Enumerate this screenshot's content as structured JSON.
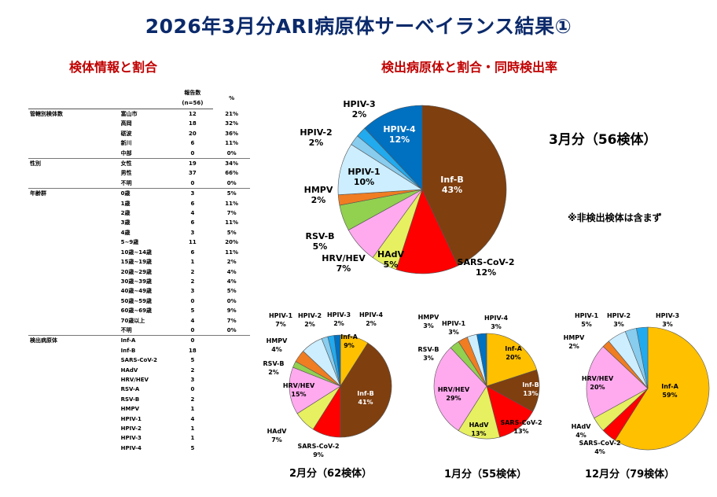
{
  "title": "2026年3月分ARI病原体サーベイランス結果①",
  "left_section_title": "検体情報と割合",
  "right_section_title": "検出病原体と割合・同時検出率",
  "table": {
    "col_count": "報告数",
    "col_n": "(n=56)",
    "col_pct": "%",
    "groups": [
      {
        "label": "管轄別検体数",
        "rows": [
          {
            "label": "富山市",
            "count": "12",
            "pct": "21%"
          },
          {
            "label": "高岡",
            "count": "18",
            "pct": "32%"
          },
          {
            "label": "砺波",
            "count": "20",
            "pct": "36%"
          },
          {
            "label": "新川",
            "count": "6",
            "pct": "11%"
          },
          {
            "label": "中部",
            "count": "0",
            "pct": "0%"
          }
        ]
      },
      {
        "label": "性別",
        "rows": [
          {
            "label": "女性",
            "count": "19",
            "pct": "34%"
          },
          {
            "label": "男性",
            "count": "37",
            "pct": "66%"
          },
          {
            "label": "不明",
            "count": "0",
            "pct": "0%"
          }
        ]
      },
      {
        "label": "年齢群",
        "rows": [
          {
            "label": "0歳",
            "count": "3",
            "pct": "5%"
          },
          {
            "label": "1歳",
            "count": "6",
            "pct": "11%"
          },
          {
            "label": "2歳",
            "count": "4",
            "pct": "7%"
          },
          {
            "label": "3歳",
            "count": "6",
            "pct": "11%"
          },
          {
            "label": "4歳",
            "count": "3",
            "pct": "5%"
          },
          {
            "label": "5~9歳",
            "count": "11",
            "pct": "20%"
          },
          {
            "label": "10歳~14歳",
            "count": "6",
            "pct": "11%"
          },
          {
            "label": "15歳~19歳",
            "count": "1",
            "pct": "2%"
          },
          {
            "label": "20歳~29歳",
            "count": "2",
            "pct": "4%"
          },
          {
            "label": "30歳~39歳",
            "count": "2",
            "pct": "4%"
          },
          {
            "label": "40歳~49歳",
            "count": "3",
            "pct": "5%"
          },
          {
            "label": "50歳~59歳",
            "count": "0",
            "pct": "0%"
          },
          {
            "label": "60歳~69歳",
            "count": "5",
            "pct": "9%"
          },
          {
            "label": "70歳以上",
            "count": "4",
            "pct": "7%"
          },
          {
            "label": "不明",
            "count": "0",
            "pct": "0%"
          }
        ]
      },
      {
        "label": "検出病原体",
        "rows": [
          {
            "label": "Inf-A",
            "count": "0",
            "pct": ""
          },
          {
            "label": "Inf-B",
            "count": "18",
            "pct": ""
          },
          {
            "label": "SARS-CoV-2",
            "count": "5",
            "pct": ""
          },
          {
            "label": "HAdV",
            "count": "2",
            "pct": ""
          },
          {
            "label": "HRV/HEV",
            "count": "3",
            "pct": ""
          },
          {
            "label": "RSV-A",
            "count": "0",
            "pct": ""
          },
          {
            "label": "RSV-B",
            "count": "2",
            "pct": ""
          },
          {
            "label": "HMPV",
            "count": "1",
            "pct": ""
          },
          {
            "label": "HPIV-1",
            "count": "4",
            "pct": ""
          },
          {
            "label": "HPIV-2",
            "count": "1",
            "pct": ""
          },
          {
            "label": "HPIV-3",
            "count": "1",
            "pct": ""
          },
          {
            "label": "HPIV-4",
            "count": "5",
            "pct": ""
          }
        ]
      }
    ]
  },
  "colors": {
    "Inf-A": "#ffc000",
    "Inf-B": "#7f3f0f",
    "SARS-CoV-2": "#ff0000",
    "HAdV": "#e7f060",
    "HRV/HEV": "#ffaaee",
    "RSV-B": "#92d050",
    "HMPV": "#f07d22",
    "HPIV-1": "#cceeff",
    "HPIV-2": "#88ccee",
    "HPIV-3": "#22aaee",
    "HPIV-4": "#0070c0"
  },
  "labels": {
    "march": "3月分（56検体）",
    "note": "※非検出検体は含まず",
    "feb": "2月分（62検体）",
    "jan": "1月分（55検体）",
    "dec": "12月分（79検体）"
  },
  "chart_data": [
    {
      "type": "pie",
      "title": "3月分（56検体）",
      "slices": [
        {
          "name": "Inf-B",
          "value": 43,
          "label": "43%"
        },
        {
          "name": "SARS-CoV-2",
          "value": 12,
          "label": "12%"
        },
        {
          "name": "HAdV",
          "value": 5,
          "label": "5%"
        },
        {
          "name": "HRV/HEV",
          "value": 7,
          "label": "7%"
        },
        {
          "name": "RSV-B",
          "value": 5,
          "label": "5%"
        },
        {
          "name": "HMPV",
          "value": 2,
          "label": "2%"
        },
        {
          "name": "HPIV-1",
          "value": 10,
          "label": "10%"
        },
        {
          "name": "HPIV-2",
          "value": 2,
          "label": "2%"
        },
        {
          "name": "HPIV-3",
          "value": 2,
          "label": "2%"
        },
        {
          "name": "HPIV-4",
          "value": 12,
          "label": "12%"
        }
      ]
    },
    {
      "type": "pie",
      "title": "2月分（62検体）",
      "slices": [
        {
          "name": "Inf-A",
          "value": 9,
          "label": "9%"
        },
        {
          "name": "Inf-B",
          "value": 41,
          "label": "41%"
        },
        {
          "name": "SARS-CoV-2",
          "value": 9,
          "label": "9%"
        },
        {
          "name": "HAdV",
          "value": 7,
          "label": "7%"
        },
        {
          "name": "HRV/HEV",
          "value": 15,
          "label": "15%"
        },
        {
          "name": "RSV-B",
          "value": 2,
          "label": "2%"
        },
        {
          "name": "HMPV",
          "value": 4,
          "label": "4%"
        },
        {
          "name": "HPIV-1",
          "value": 7,
          "label": "7%"
        },
        {
          "name": "HPIV-2",
          "value": 2,
          "label": "2%"
        },
        {
          "name": "HPIV-3",
          "value": 2,
          "label": "2%"
        },
        {
          "name": "HPIV-4",
          "value": 2,
          "label": "2%"
        }
      ]
    },
    {
      "type": "pie",
      "title": "1月分（55検体）",
      "slices": [
        {
          "name": "Inf-A",
          "value": 20,
          "label": "20%"
        },
        {
          "name": "Inf-B",
          "value": 13,
          "label": "13%"
        },
        {
          "name": "SARS-CoV-2",
          "value": 13,
          "label": "13%"
        },
        {
          "name": "HAdV",
          "value": 13,
          "label": "13%"
        },
        {
          "name": "HRV/HEV",
          "value": 29,
          "label": "29%"
        },
        {
          "name": "RSV-B",
          "value": 3,
          "label": "3%"
        },
        {
          "name": "HMPV",
          "value": 3,
          "label": "3%"
        },
        {
          "name": "HPIV-1",
          "value": 3,
          "label": "3%"
        },
        {
          "name": "HPIV-4",
          "value": 3,
          "label": "3%"
        }
      ]
    },
    {
      "type": "pie",
      "title": "12月分（79検体）",
      "slices": [
        {
          "name": "Inf-A",
          "value": 59,
          "label": "59%"
        },
        {
          "name": "SARS-CoV-2",
          "value": 4,
          "label": "4%"
        },
        {
          "name": "HAdV",
          "value": 4,
          "label": "4%"
        },
        {
          "name": "HRV/HEV",
          "value": 20,
          "label": "20%"
        },
        {
          "name": "HMPV",
          "value": 2,
          "label": "2%"
        },
        {
          "name": "HPIV-1",
          "value": 5,
          "label": "5%"
        },
        {
          "name": "HPIV-2",
          "value": 3,
          "label": "3%"
        },
        {
          "name": "HPIV-3",
          "value": 3,
          "label": "3%"
        }
      ]
    }
  ]
}
